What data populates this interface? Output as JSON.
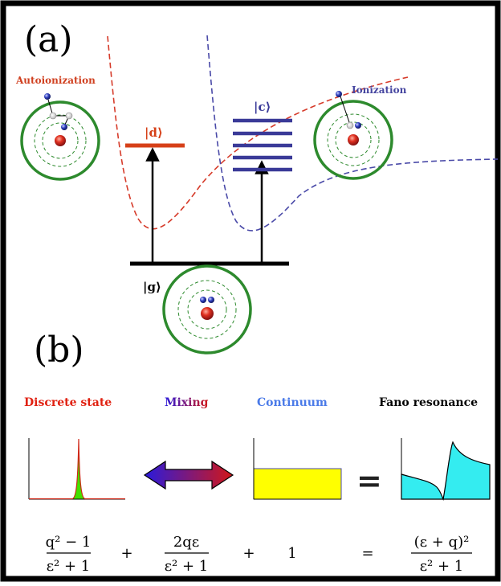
{
  "panel_a": {
    "label": "(a)",
    "autoionization_label": "Autoionization",
    "ionization_label": "Ionization",
    "state_d": "|d⟩",
    "state_c": "|c⟩",
    "state_g": "|g⟩"
  },
  "panel_b": {
    "label": "(b)",
    "headings": {
      "discrete": "Discrete state",
      "mixing": "Mixing",
      "continuum": "Continuum",
      "fano": "Fano resonance"
    },
    "equals_sign": "=",
    "formula": {
      "term1_num": "q² − 1",
      "term1_den": "ε² + 1",
      "plus1": "+",
      "term2_num": "2qε",
      "term2_den": "ε² + 1",
      "plus2": "+",
      "term3": "1",
      "equals": "=",
      "result_num": "(ε + q)²",
      "result_den": "ε² + 1"
    }
  },
  "colors": {
    "discrete": "#e02010",
    "mixing_start": "#2a1adc",
    "mixing_end": "#d21818",
    "continuum_text": "#4a7ae8",
    "continuum_fill": "#ffff00",
    "fano_fill": "#34ecf0",
    "curve_red": "#d63b2a",
    "curve_blue": "#4a4aa8",
    "level_d": "#d64018",
    "level_c": "#3a3a98",
    "orbit_green": "#2d8a2d",
    "autoionization_text": "#d04020",
    "ionization_text": "#4646a0"
  }
}
